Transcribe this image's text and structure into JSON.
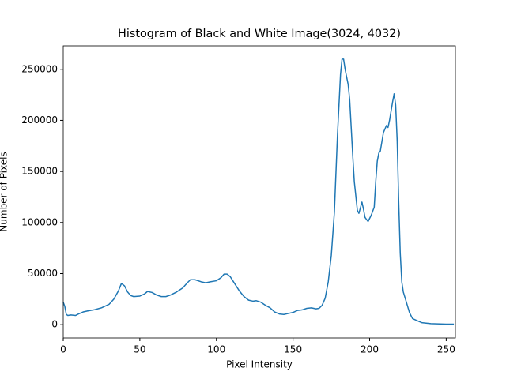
{
  "chart_data": {
    "type": "line",
    "title": "Histogram of Black and White Image(3024, 4032)",
    "xlabel": "Pixel Intensity",
    "ylabel": "Number of Pixels",
    "x": [
      0,
      1,
      2,
      3,
      5,
      8,
      10,
      13,
      16,
      20,
      25,
      30,
      33,
      36,
      38,
      40,
      42,
      44,
      46,
      50,
      53,
      55,
      58,
      61,
      64,
      67,
      70,
      74,
      78,
      81,
      83,
      86,
      90,
      93,
      96,
      100,
      103,
      105,
      107,
      109,
      112,
      115,
      118,
      121,
      124,
      126,
      129,
      132,
      135,
      138,
      141,
      144,
      147,
      150,
      153,
      156,
      159,
      162,
      165,
      167,
      169,
      171,
      173,
      175,
      177,
      179,
      181,
      182,
      183,
      184,
      186,
      187,
      189,
      190,
      192,
      193,
      195,
      196,
      197,
      199,
      201,
      203,
      204,
      205,
      206,
      207,
      209,
      211,
      212,
      213,
      215,
      216,
      217,
      218,
      219,
      220,
      221,
      222,
      224,
      226,
      228,
      231,
      234,
      240,
      250,
      255
    ],
    "series": [
      {
        "name": null,
        "color": "#1f77b4",
        "values": [
          22000,
          18000,
          10000,
          9000,
          9500,
          9000,
          10500,
          12500,
          13500,
          14500,
          16500,
          20000,
          25000,
          33000,
          40500,
          38000,
          32000,
          28500,
          27500,
          28000,
          30000,
          32500,
          31500,
          29000,
          27500,
          27500,
          29000,
          32000,
          36000,
          41000,
          44000,
          44000,
          42000,
          41000,
          42000,
          43000,
          46000,
          49500,
          49500,
          47000,
          40000,
          33000,
          27500,
          24000,
          23000,
          23500,
          22000,
          19000,
          16500,
          12500,
          10500,
          10000,
          11000,
          12000,
          14000,
          14500,
          16000,
          16500,
          15500,
          16000,
          19000,
          26000,
          42000,
          68000,
          110000,
          185000,
          245000,
          260000,
          260000,
          250000,
          235000,
          220000,
          165000,
          140000,
          112000,
          109000,
          120000,
          113000,
          105000,
          101000,
          107000,
          115000,
          140000,
          160000,
          168000,
          170000,
          188000,
          195000,
          193000,
          200000,
          218000,
          226000,
          215000,
          180000,
          120000,
          70000,
          42000,
          32000,
          22000,
          12000,
          6000,
          4000,
          2000,
          1000,
          500,
          500
        ]
      }
    ],
    "xlim": [
      0,
      256
    ],
    "ylim": [
      -13000,
      273000
    ],
    "xticks": [
      0,
      50,
      100,
      150,
      200,
      250
    ],
    "yticks": [
      0,
      50000,
      100000,
      150000,
      200000,
      250000
    ]
  }
}
